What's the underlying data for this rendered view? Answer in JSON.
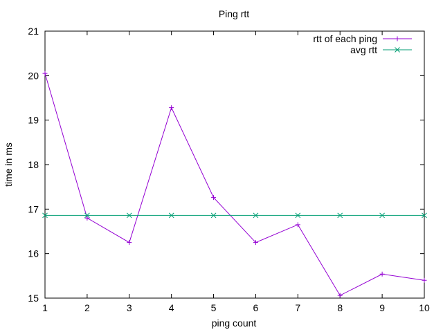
{
  "chart_data": {
    "type": "line",
    "title": "Ping rtt",
    "xlabel": "ping count",
    "ylabel": "time in ms",
    "xlim": [
      1,
      10
    ],
    "ylim": [
      15,
      21
    ],
    "xticks": [
      "1",
      "2",
      "3",
      "4",
      "5",
      "6",
      "7",
      "8",
      "9",
      "10"
    ],
    "yticks": [
      "15",
      "16",
      "17",
      "18",
      "19",
      "20",
      "21"
    ],
    "grid": false,
    "legend_position": "top-right",
    "series": [
      {
        "name": "rtt of each ping",
        "color": "#9400d3",
        "marker": "plus",
        "x": [
          1,
          2,
          3,
          4,
          5,
          6,
          7,
          8,
          9,
          10
        ],
        "y": [
          20.05,
          16.8,
          16.25,
          19.28,
          17.26,
          16.25,
          16.65,
          15.06,
          15.54,
          15.4
        ]
      },
      {
        "name": "avg rtt",
        "color": "#009e73",
        "marker": "cross",
        "x": [
          1,
          2,
          3,
          4,
          5,
          6,
          7,
          8,
          9,
          10
        ],
        "y": [
          16.86,
          16.86,
          16.86,
          16.86,
          16.86,
          16.86,
          16.86,
          16.86,
          16.86,
          16.86
        ]
      }
    ]
  }
}
